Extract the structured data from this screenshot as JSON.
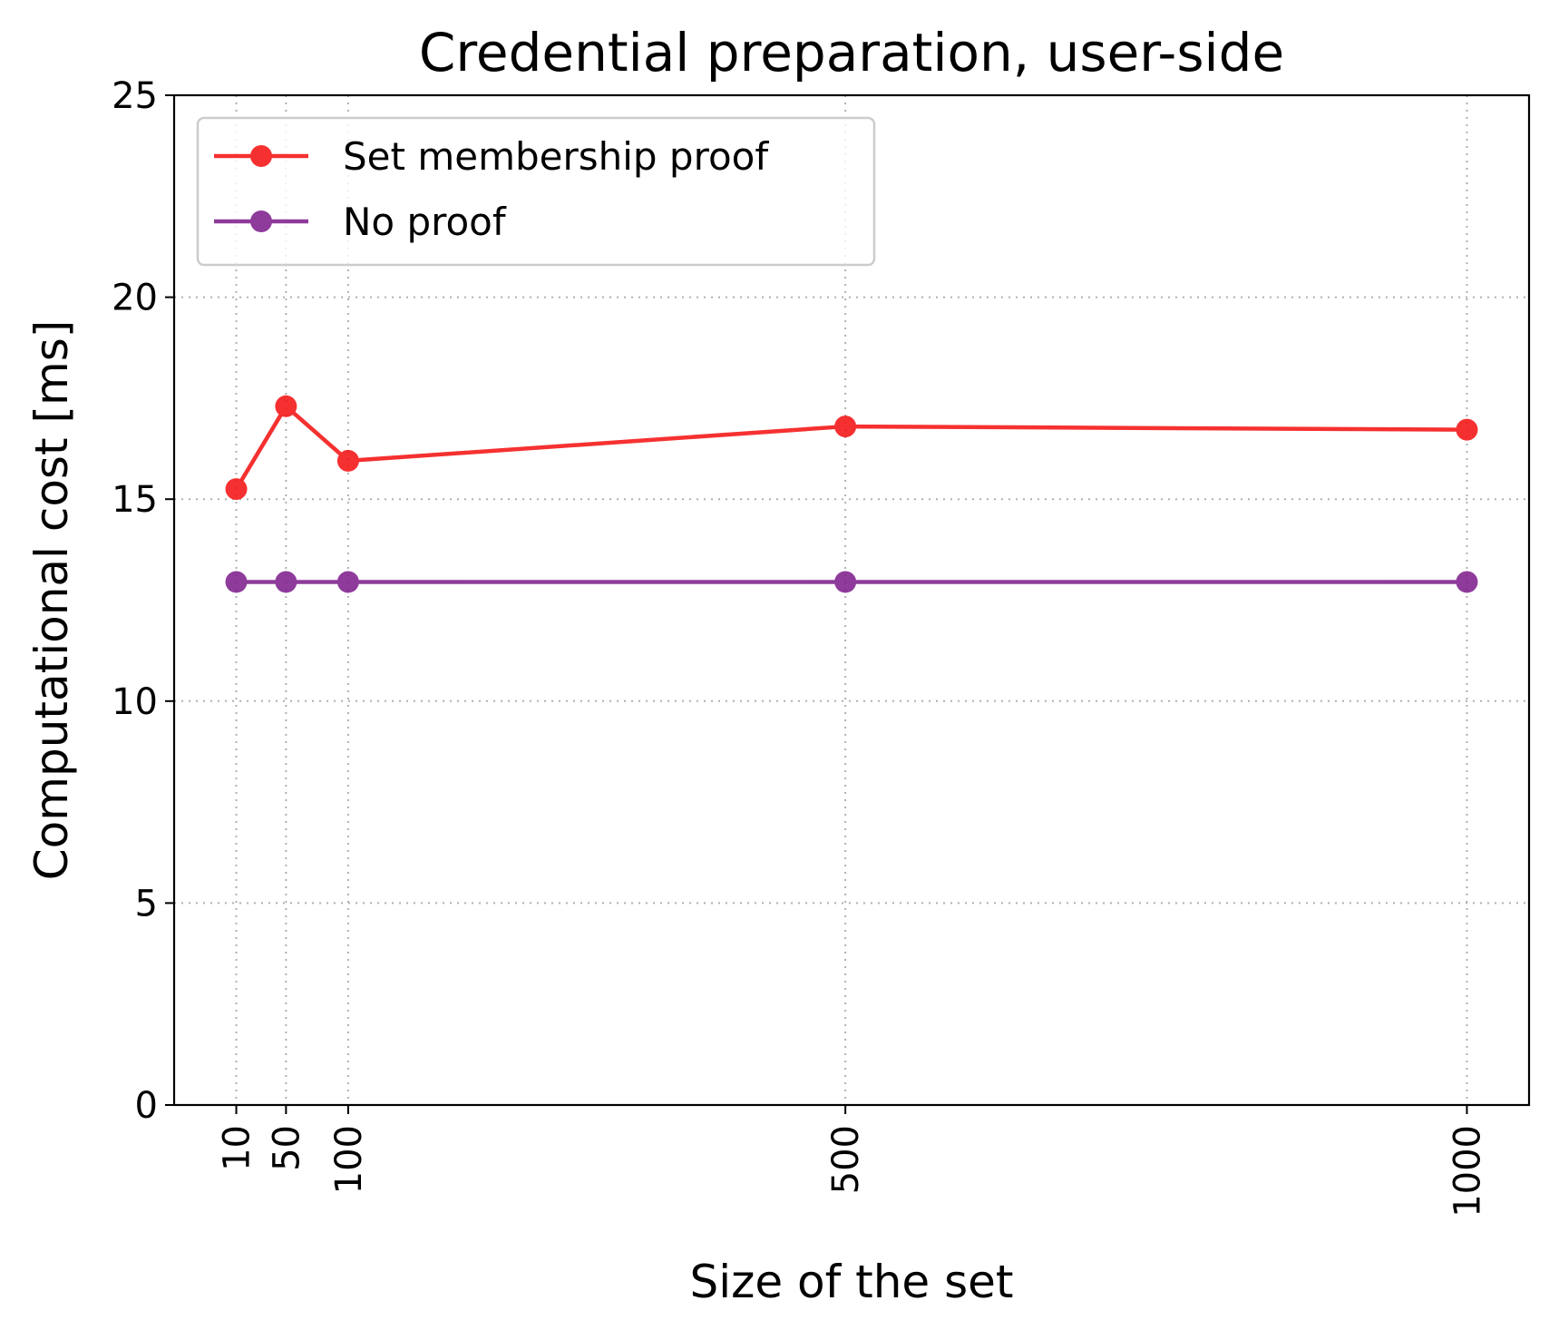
{
  "chart_data": {
    "type": "line",
    "title": "Credential preparation, user-side",
    "xlabel": "Size of the set",
    "ylabel": "Computational cost [ms]",
    "x": [
      10,
      50,
      100,
      500,
      1000
    ],
    "xticks": [
      "10",
      "50",
      "100",
      "500",
      "1000"
    ],
    "xlim": [
      -40,
      1050
    ],
    "ylim": [
      0,
      25
    ],
    "yticks": [
      "0",
      "5",
      "10",
      "15",
      "20",
      "25"
    ],
    "grid": true,
    "legend_position": "top-left",
    "series": [
      {
        "name": "Set membership proof",
        "color": "#f40d0d",
        "values": [
          15.25,
          17.3,
          15.95,
          16.8,
          16.72
        ]
      },
      {
        "name": "No proof",
        "color": "#7b1a8a",
        "values": [
          12.95,
          12.95,
          12.95,
          12.95,
          12.95
        ]
      }
    ]
  }
}
